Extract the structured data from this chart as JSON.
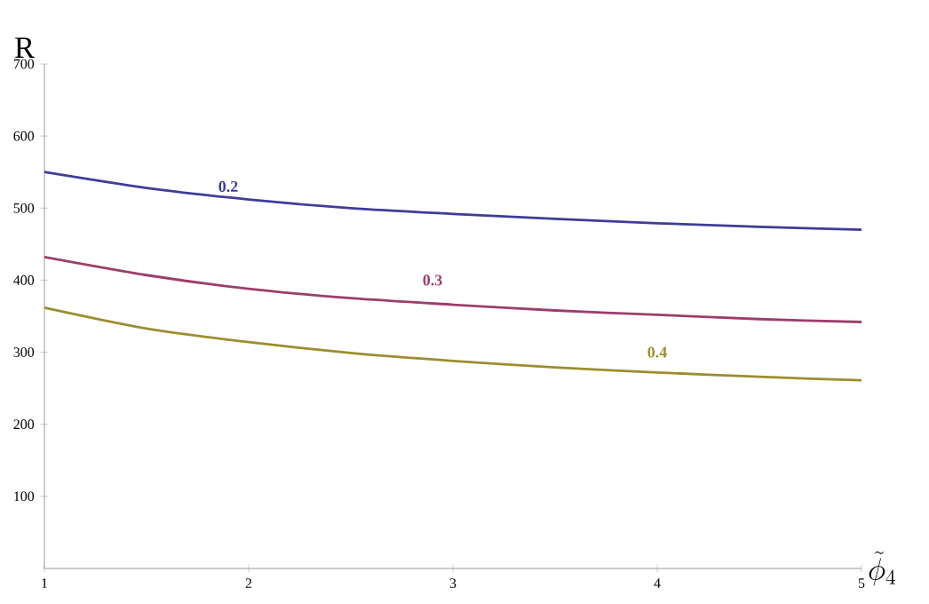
{
  "chart_data": {
    "type": "line",
    "xlabel": "\\tilde{\\phi}_4",
    "ylabel": "R",
    "xlim": [
      1,
      5
    ],
    "ylim": [
      0,
      700
    ],
    "xticks": [
      1,
      2,
      3,
      4,
      5
    ],
    "yticks": [
      100,
      200,
      300,
      400,
      500,
      600,
      700
    ],
    "grid": false,
    "legend": false,
    "marker": "none",
    "line_style": "solid",
    "x": [
      1,
      1.5,
      2,
      2.5,
      3,
      3.5,
      4,
      4.5,
      5
    ],
    "series": [
      {
        "name": "0.2",
        "color": "#3d3d99",
        "values": [
          550,
          528,
          512,
          500,
          492,
          485,
          479,
          474,
          470
        ]
      },
      {
        "name": "0.3",
        "color": "#9c3d6e",
        "values": [
          432,
          407,
          388,
          375,
          366,
          358,
          352,
          346,
          342
        ]
      },
      {
        "name": "0.4",
        "color": "#9c8d30",
        "values": [
          362,
          333,
          314,
          299,
          288,
          279,
          272,
          266,
          261
        ]
      }
    ]
  }
}
